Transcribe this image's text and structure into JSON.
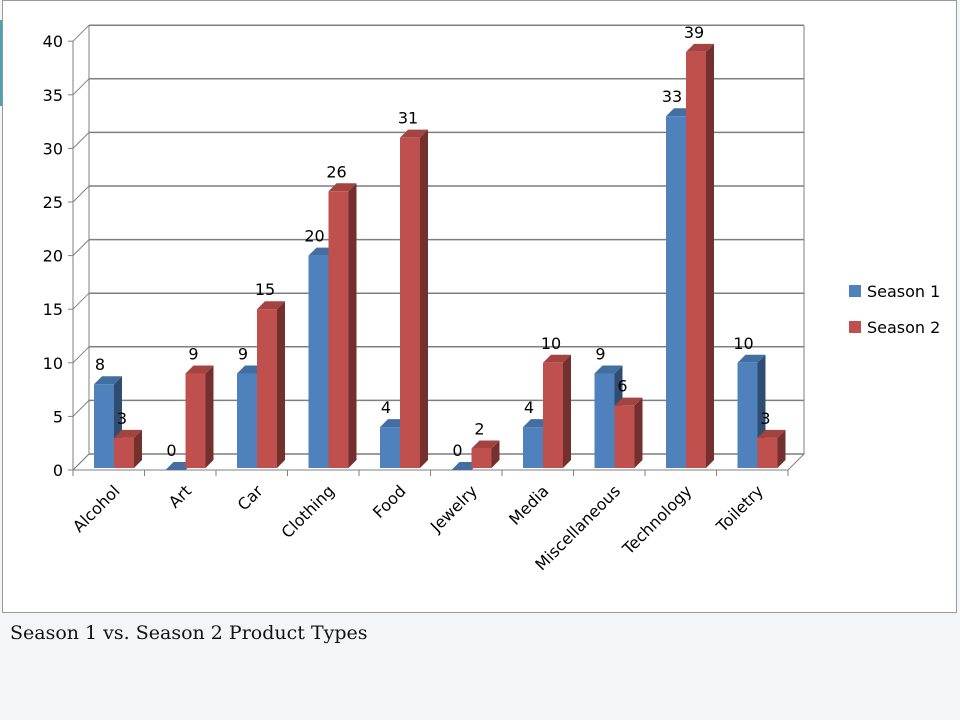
{
  "caption": "Season 1 vs. Season 2 Product Types",
  "chart_data": {
    "type": "bar",
    "title": "",
    "xlabel": "",
    "ylabel": "",
    "ylim": [
      0,
      40
    ],
    "yticks": [
      0,
      5,
      10,
      15,
      20,
      25,
      30,
      35,
      40
    ],
    "grid": true,
    "legend_position": "right",
    "categories": [
      "Alcohol",
      "Art",
      "Car",
      "Clothing",
      "Food",
      "Jewelry",
      "Media",
      "Miscellaneous",
      "Technology",
      "Toiletry"
    ],
    "series": [
      {
        "name": "Season 1",
        "color": "#4f81bd",
        "values": [
          8,
          0,
          9,
          20,
          4,
          0,
          4,
          9,
          33,
          10
        ]
      },
      {
        "name": "Season 2",
        "color": "#c0504d",
        "values": [
          3,
          9,
          15,
          26,
          31,
          2,
          10,
          6,
          39,
          3
        ]
      }
    ]
  }
}
